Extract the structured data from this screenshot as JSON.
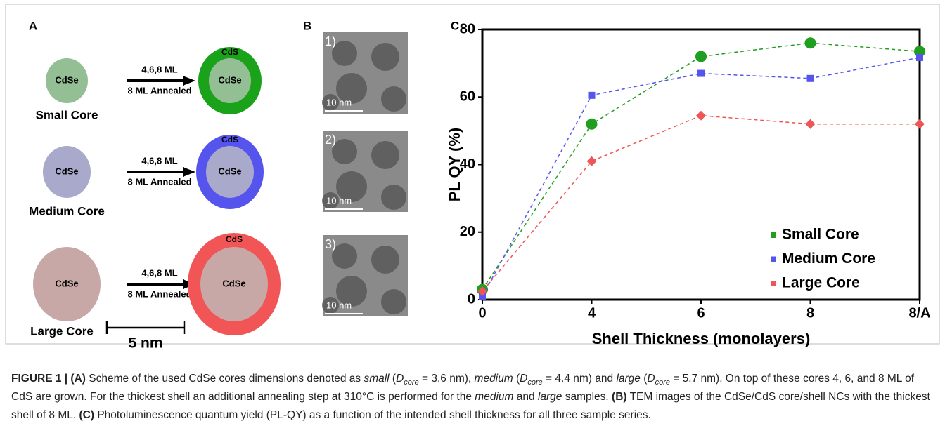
{
  "figure": {
    "panel_a": {
      "label": "A",
      "rows": [
        {
          "core": "CdSe",
          "process": "4,6,8 ML",
          "process_2": "8 ML Annealed",
          "shell": "CdS",
          "shell_core": "CdSe",
          "name": "Small Core"
        },
        {
          "core": "CdSe",
          "process": "4,6,8 ML",
          "process_2": "8 ML Annealed",
          "shell": "CdS",
          "shell_core": "CdSe",
          "name": "Medium Core"
        },
        {
          "core": "CdSe",
          "process": "4,6,8 ML",
          "process_2": "8 ML Annealed",
          "shell": "CdS",
          "shell_core": "CdSe",
          "name": "Large Core"
        }
      ],
      "scale_bar": "5 nm"
    },
    "panel_b": {
      "label": "B",
      "images": [
        {
          "index": "1)",
          "scale_bar": "10 nm"
        },
        {
          "index": "2)",
          "scale_bar": "10 nm"
        },
        {
          "index": "3)",
          "scale_bar": "10 nm"
        }
      ]
    },
    "panel_c": {
      "label": "C"
    }
  },
  "chart_data": {
    "type": "line",
    "xlabel": "Shell Thickness (monolayers)",
    "ylabel": "PL QY (%)",
    "categories": [
      "0",
      "4",
      "6",
      "8",
      "8/A"
    ],
    "series": [
      {
        "name": "Small Core",
        "color": "#1f9e1f",
        "marker": "circle",
        "values": [
          3,
          52,
          72,
          76,
          73.5
        ]
      },
      {
        "name": "Medium Core",
        "color": "#5555ee",
        "marker": "square",
        "values": [
          1,
          60.5,
          67,
          65.5,
          71.7
        ]
      },
      {
        "name": "Large Core",
        "color": "#ee5555",
        "marker": "diamond",
        "values": [
          2.5,
          41,
          54.5,
          52,
          52
        ]
      }
    ],
    "ylim": [
      0,
      80
    ],
    "yticks": [
      0,
      20,
      40,
      60,
      80
    ],
    "legend": "lower right"
  },
  "caption": [
    {
      "text": "FIGURE 1 | (A)",
      "bold": true
    },
    {
      "text": " Scheme of the used CdSe cores dimensions denoted as "
    },
    {
      "text": "small",
      "italic": true
    },
    {
      "text": " ("
    },
    {
      "text": "D",
      "italic": true
    },
    {
      "text": "core",
      "italic": true,
      "sub": true
    },
    {
      "text": " = 3.6 nm), "
    },
    {
      "text": "medium",
      "italic": true
    },
    {
      "text": " ("
    },
    {
      "text": "D",
      "italic": true
    },
    {
      "text": "core",
      "italic": true,
      "sub": true
    },
    {
      "text": " = 4.4 nm) and "
    },
    {
      "text": "large",
      "italic": true
    },
    {
      "text": " ("
    },
    {
      "text": "D",
      "italic": true
    },
    {
      "text": "core",
      "italic": true,
      "sub": true
    },
    {
      "text": " = 5.7 nm). On top of these cores 4, 6, and 8 ML of CdS are grown. For the thickest shell an additional annealing step at 310°C is performed for the "
    },
    {
      "text": "medium",
      "italic": true
    },
    {
      "text": " and "
    },
    {
      "text": "large",
      "italic": true
    },
    {
      "text": " samples. "
    },
    {
      "text": "(B)",
      "bold": true
    },
    {
      "text": " TEM images of the CdSe/CdS core/shell NCs with the thickest shell of 8 ML. "
    },
    {
      "text": "(C)",
      "bold": true
    },
    {
      "text": " Photoluminescence quantum yield (PL-QY) as a function of the intended shell thickness for all three sample series."
    }
  ]
}
